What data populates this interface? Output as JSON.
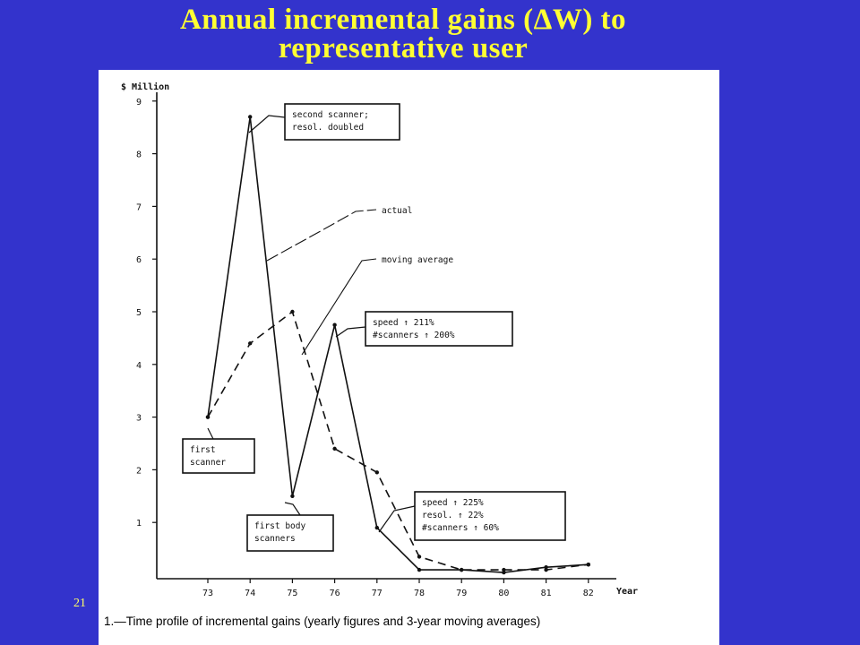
{
  "slide": {
    "title_line1": "Annual incremental gains (ΔW) to",
    "title_line2": "representative user",
    "number": "21"
  },
  "chart_data": {
    "type": "line",
    "ylabel": "$ Million",
    "xlabel": "Year",
    "x": [
      "73",
      "74",
      "75",
      "76",
      "77",
      "78",
      "79",
      "80",
      "81",
      "82"
    ],
    "y_ticks": [
      "1",
      "2",
      "3",
      "4",
      "5",
      "6",
      "7",
      "8",
      "9"
    ],
    "ylim": [
      0,
      9.5
    ],
    "series": [
      {
        "name": "actual",
        "values": [
          3.0,
          8.7,
          1.5,
          4.75,
          0.9,
          0.1,
          0.1,
          0.05,
          0.15,
          0.2
        ]
      },
      {
        "name": "moving average",
        "values": [
          3.0,
          4.4,
          5.0,
          2.4,
          1.95,
          0.35,
          0.1,
          0.1,
          0.1,
          0.2
        ]
      }
    ],
    "annotations": [
      {
        "lines": [
          "second scanner;",
          "resol. doubled"
        ]
      },
      {
        "lines": [
          "speed ↑ 211%",
          "#scanners ↑ 200%"
        ]
      },
      {
        "lines": [
          "first",
          "scanner"
        ]
      },
      {
        "lines": [
          "first body",
          "scanners"
        ]
      },
      {
        "lines": [
          "speed ↑ 225%",
          "resol. ↑ 22%",
          "#scanners ↑ 60%"
        ]
      }
    ],
    "caption": "1.—Time profile of incremental gains (yearly figures and 3-year moving averages)"
  }
}
